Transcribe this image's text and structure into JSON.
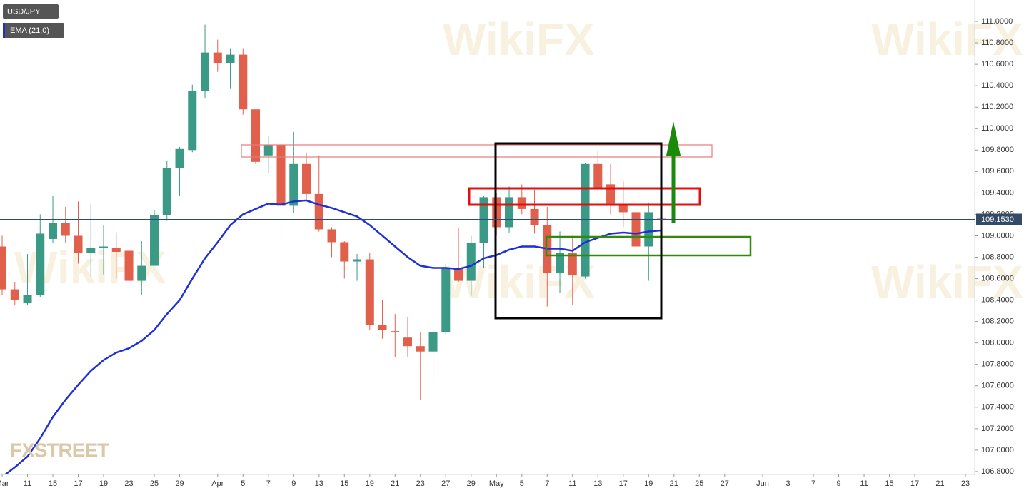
{
  "chart_data": {
    "type": "candlestick",
    "watermark": "WikiFX",
    "logo": "FXSTREET",
    "up_color": "#3a9a85",
    "down_color": "#e0604c",
    "x": [
      0,
      1,
      2,
      3,
      4,
      5,
      6,
      7,
      8,
      9,
      10,
      11,
      12,
      13,
      14,
      15,
      16,
      17,
      18,
      19,
      20,
      21,
      22,
      23,
      24,
      25,
      26,
      27,
      28,
      29,
      30,
      31,
      32,
      33,
      34,
      35,
      36,
      37,
      38,
      39,
      40,
      41,
      42,
      43,
      44,
      45,
      46,
      47,
      48,
      49,
      50,
      51,
      52
    ],
    "series": [
      {
        "name": "USD/JPY",
        "open": [
          108.9,
          108.5,
          108.37,
          108.45,
          108.97,
          109.12,
          109.0,
          108.84,
          108.89,
          108.89,
          108.86,
          108.58,
          108.72,
          109.19,
          109.63,
          109.8,
          110.35,
          110.71,
          110.61,
          110.69,
          110.18,
          109.75,
          109.85,
          109.28,
          109.67,
          109.39,
          109.06,
          108.94,
          108.76,
          108.78,
          108.17,
          108.11,
          108.05,
          107.97,
          107.92,
          108.1,
          108.7,
          108.58,
          108.93,
          109.36,
          109.08,
          109.36,
          109.25,
          109.1,
          108.65,
          108.84,
          108.62,
          109.67,
          109.48,
          109.29,
          109.22,
          108.9,
          109.17
        ],
        "high": [
          109.0,
          108.57,
          108.83,
          109.2,
          109.37,
          109.27,
          109.32,
          109.3,
          109.1,
          109.03,
          108.9,
          108.95,
          109.24,
          109.7,
          109.83,
          110.41,
          110.97,
          110.83,
          110.75,
          110.75,
          110.18,
          109.93,
          109.9,
          109.97,
          109.77,
          109.75,
          109.08,
          108.95,
          108.83,
          108.84,
          108.4,
          108.27,
          108.24,
          108.1,
          108.24,
          108.74,
          109.07,
          109.0,
          109.37,
          109.4,
          109.46,
          109.48,
          109.43,
          109.27,
          109.04,
          109.0,
          109.68,
          109.79,
          109.67,
          109.51,
          109.24,
          109.31,
          109.19
        ],
        "low": [
          108.45,
          108.35,
          108.35,
          108.43,
          108.93,
          108.93,
          108.74,
          108.62,
          108.64,
          108.6,
          108.4,
          108.45,
          108.72,
          109.14,
          109.37,
          109.78,
          110.28,
          110.53,
          110.37,
          110.13,
          109.67,
          109.58,
          109.0,
          109.21,
          109.34,
          109.04,
          108.8,
          108.6,
          108.58,
          108.12,
          108.04,
          107.87,
          107.87,
          107.47,
          107.64,
          108.08,
          108.57,
          108.44,
          108.7,
          109.0,
          109.03,
          109.2,
          109.02,
          108.34,
          108.47,
          108.35,
          108.6,
          109.42,
          109.2,
          109.08,
          108.84,
          108.58,
          109.15
        ],
        "close": [
          108.5,
          108.4,
          108.45,
          109.02,
          109.12,
          109.0,
          108.84,
          108.89,
          108.9,
          108.85,
          108.58,
          108.72,
          109.19,
          109.63,
          109.81,
          110.35,
          110.71,
          110.61,
          110.69,
          110.18,
          109.69,
          109.85,
          109.28,
          109.67,
          109.39,
          109.06,
          108.94,
          108.76,
          108.78,
          108.17,
          108.12,
          108.1,
          107.97,
          107.92,
          108.1,
          108.7,
          108.58,
          108.93,
          109.36,
          109.08,
          109.36,
          109.25,
          109.1,
          108.65,
          108.84,
          108.63,
          109.67,
          109.44,
          109.3,
          109.22,
          108.9,
          109.22,
          109.16
        ]
      },
      {
        "name": "EMA (21,0)",
        "color": "#1f2fd6",
        "values": [
          106.75,
          106.84,
          106.94,
          107.11,
          107.31,
          107.47,
          107.61,
          107.74,
          107.84,
          107.91,
          107.95,
          108.02,
          108.12,
          108.27,
          108.4,
          108.6,
          108.79,
          108.94,
          109.1,
          109.2,
          109.25,
          109.3,
          109.29,
          109.32,
          109.33,
          109.29,
          109.26,
          109.22,
          109.18,
          109.1,
          109.0,
          108.9,
          108.8,
          108.72,
          108.7,
          108.7,
          108.69,
          108.72,
          108.79,
          108.82,
          108.87,
          108.9,
          108.9,
          108.88,
          108.88,
          108.86,
          108.94,
          108.98,
          109.02,
          109.03,
          109.02,
          109.04,
          109.05
        ]
      }
    ],
    "last_price": {
      "value": 109.153,
      "label": "109.1530"
    },
    "xlim": [
      -0.17,
      76.73
    ],
    "xticks": [
      {
        "value": 0,
        "label": "Mar"
      },
      {
        "value": 2,
        "label": "11"
      },
      {
        "value": 4,
        "label": "15"
      },
      {
        "value": 6,
        "label": "17"
      },
      {
        "value": 8,
        "label": "19"
      },
      {
        "value": 10,
        "label": "23"
      },
      {
        "value": 12,
        "label": "25"
      },
      {
        "value": 14,
        "label": "29"
      },
      {
        "value": 17,
        "label": "Apr"
      },
      {
        "value": 19,
        "label": "5"
      },
      {
        "value": 21,
        "label": "7"
      },
      {
        "value": 23,
        "label": "9"
      },
      {
        "value": 25,
        "label": "13"
      },
      {
        "value": 27,
        "label": "15"
      },
      {
        "value": 29,
        "label": "19"
      },
      {
        "value": 31,
        "label": "21"
      },
      {
        "value": 33,
        "label": "23"
      },
      {
        "value": 35,
        "label": "27"
      },
      {
        "value": 37,
        "label": "29"
      },
      {
        "value": 39,
        "label": "May"
      },
      {
        "value": 41,
        "label": "5"
      },
      {
        "value": 43,
        "label": "7"
      },
      {
        "value": 45,
        "label": "11"
      },
      {
        "value": 47,
        "label": "13"
      },
      {
        "value": 49,
        "label": "17"
      },
      {
        "value": 51,
        "label": "19"
      },
      {
        "value": 53,
        "label": "21"
      },
      {
        "value": 55,
        "label": "25"
      },
      {
        "value": 57,
        "label": "27"
      },
      {
        "value": 60,
        "label": "Jun"
      },
      {
        "value": 62,
        "label": "3"
      },
      {
        "value": 64,
        "label": "7"
      },
      {
        "value": 66,
        "label": "9"
      },
      {
        "value": 68,
        "label": "11"
      },
      {
        "value": 70,
        "label": "15"
      },
      {
        "value": 72,
        "label": "17"
      },
      {
        "value": 74,
        "label": "21"
      },
      {
        "value": 76,
        "label": "23"
      }
    ],
    "ylim": [
      106.773,
      111.2
    ],
    "yticks": [
      {
        "value": 106.8,
        "label": "106.8000"
      },
      {
        "value": 107.0,
        "label": "107.0000"
      },
      {
        "value": 107.2,
        "label": "107.2000"
      },
      {
        "value": 107.4,
        "label": "107.4000"
      },
      {
        "value": 107.6,
        "label": "107.6000"
      },
      {
        "value": 107.8,
        "label": "107.8000"
      },
      {
        "value": 108.0,
        "label": "108.0000"
      },
      {
        "value": 108.2,
        "label": "108.2000"
      },
      {
        "value": 108.4,
        "label": "108.4000"
      },
      {
        "value": 108.6,
        "label": "108.6000"
      },
      {
        "value": 108.8,
        "label": "108.8000"
      },
      {
        "value": 109.0,
        "label": "109.0000"
      },
      {
        "value": 109.2,
        "label": "109.2000"
      },
      {
        "value": 109.4,
        "label": "109.4000"
      },
      {
        "value": 109.6,
        "label": "109.6000"
      },
      {
        "value": 109.8,
        "label": "109.8000"
      },
      {
        "value": 110.0,
        "label": "110.0000"
      },
      {
        "value": 110.2,
        "label": "110.2000"
      },
      {
        "value": 110.4,
        "label": "110.4000"
      },
      {
        "value": 110.6,
        "label": "110.6000"
      },
      {
        "value": 110.8,
        "label": "110.8000"
      },
      {
        "value": 111.0,
        "label": "111.0000"
      }
    ]
  }
}
